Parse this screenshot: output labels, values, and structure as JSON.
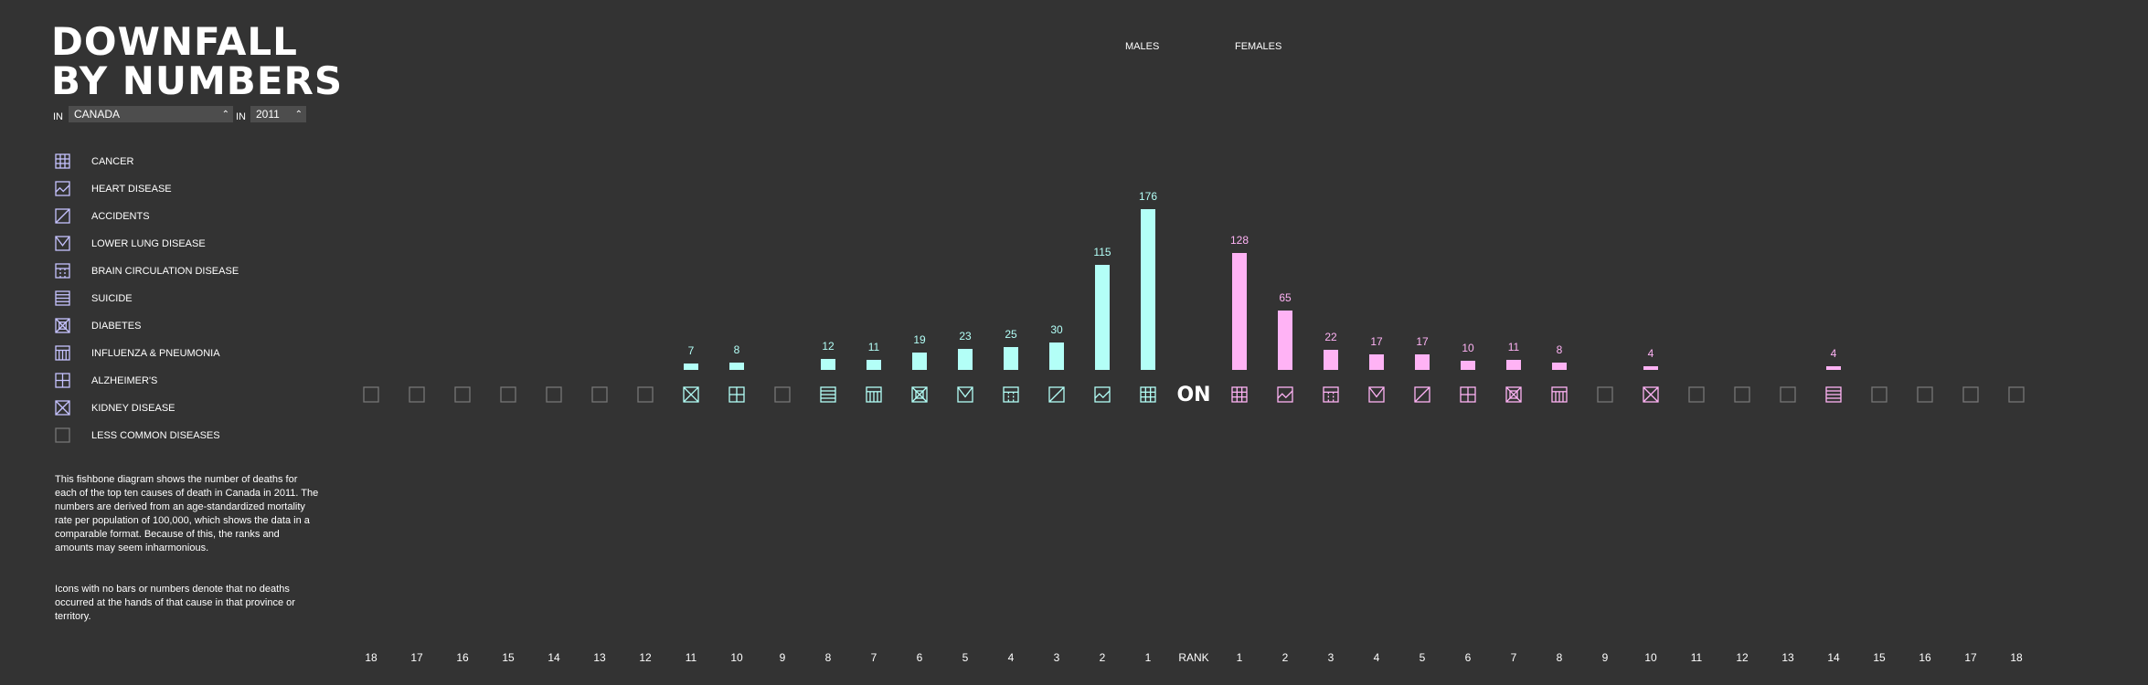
{
  "title_line1": "DOWNFALL",
  "title_line2": "BY NUMBERS",
  "filters": {
    "in_label_1": "IN",
    "region": "CANADA",
    "in_label_2": "IN",
    "year": "2011"
  },
  "legend": [
    {
      "label": "CANCER",
      "icon": "grid-icon"
    },
    {
      "label": "HEART DISEASE",
      "icon": "heart-line-icon"
    },
    {
      "label": "ACCIDENTS",
      "icon": "diagonal-icon"
    },
    {
      "label": "LOWER LUNG DISEASE",
      "icon": "ribbon-icon"
    },
    {
      "label": "BRAIN CIRCULATION DISEASE",
      "icon": "dashed-arch-icon"
    },
    {
      "label": "SUICIDE",
      "icon": "ladder-icon"
    },
    {
      "label": "DIABETES",
      "icon": "box-x-icon"
    },
    {
      "label": "INFLUENZA & PNEUMONIA",
      "icon": "comb-icon"
    },
    {
      "label": "ALZHEIMER'S",
      "icon": "quad-icon"
    },
    {
      "label": "KIDNEY DISEASE",
      "icon": "bowtie-icon"
    },
    {
      "label": "LESS COMMON DISEASES",
      "icon": "empty-square-icon"
    }
  ],
  "description": "This fishbone diagram shows the number of deaths for each of the top ten causes of death in Canada in 2011. The numbers are derived from an age-standardized mortality rate per population of 100,000, which shows the data in a comparable format. Because of this, the ranks and amounts may seem inharmonious.",
  "description2": "Icons with no bars or numbers denote that no deaths occurred at the hands of that cause in that province or territory.",
  "males_label": "MALES",
  "females_label": "FEMALES",
  "center_label": "ON",
  "rank_label": "RANK",
  "colors": {
    "male": "#b3fff7",
    "female": "#ffb3f5",
    "muted": "#777777",
    "legend": "#c6c3ff",
    "background": "#333333"
  },
  "chart_data": {
    "type": "bar",
    "males": [
      {
        "rank": 1,
        "cause": "CANCER",
        "value": 176
      },
      {
        "rank": 2,
        "cause": "HEART DISEASE",
        "value": 115
      },
      {
        "rank": 3,
        "cause": "ACCIDENTS",
        "value": 30
      },
      {
        "rank": 4,
        "cause": "BRAIN CIRCULATION DISEASE",
        "value": 25
      },
      {
        "rank": 5,
        "cause": "LOWER LUNG DISEASE",
        "value": 23
      },
      {
        "rank": 6,
        "cause": "DIABETES",
        "value": 19
      },
      {
        "rank": 7,
        "cause": "INFLUENZA & PNEUMONIA",
        "value": 11
      },
      {
        "rank": 8,
        "cause": "SUICIDE",
        "value": 12
      },
      {
        "rank": 9,
        "cause": "LESS COMMON DISEASES",
        "value": null
      },
      {
        "rank": 10,
        "cause": "ALZHEIMER'S",
        "value": 8
      },
      {
        "rank": 11,
        "cause": "KIDNEY DISEASE",
        "value": 7
      },
      {
        "rank": 12,
        "cause": "LESS COMMON DISEASES",
        "value": null
      },
      {
        "rank": 13,
        "cause": "LESS COMMON DISEASES",
        "value": null
      },
      {
        "rank": 14,
        "cause": "LESS COMMON DISEASES",
        "value": null
      },
      {
        "rank": 15,
        "cause": "LESS COMMON DISEASES",
        "value": null
      },
      {
        "rank": 16,
        "cause": "LESS COMMON DISEASES",
        "value": null
      },
      {
        "rank": 17,
        "cause": "LESS COMMON DISEASES",
        "value": null
      },
      {
        "rank": 18,
        "cause": "LESS COMMON DISEASES",
        "value": null
      }
    ],
    "females": [
      {
        "rank": 1,
        "cause": "CANCER",
        "value": 128
      },
      {
        "rank": 2,
        "cause": "HEART DISEASE",
        "value": 65
      },
      {
        "rank": 3,
        "cause": "BRAIN CIRCULATION DISEASE",
        "value": 22
      },
      {
        "rank": 4,
        "cause": "LOWER LUNG DISEASE",
        "value": 17
      },
      {
        "rank": 5,
        "cause": "ACCIDENTS",
        "value": 17
      },
      {
        "rank": 6,
        "cause": "ALZHEIMER'S",
        "value": 10
      },
      {
        "rank": 7,
        "cause": "DIABETES",
        "value": 11
      },
      {
        "rank": 8,
        "cause": "INFLUENZA & PNEUMONIA",
        "value": 8
      },
      {
        "rank": 9,
        "cause": "LESS COMMON DISEASES",
        "value": null
      },
      {
        "rank": 10,
        "cause": "KIDNEY DISEASE",
        "value": 4
      },
      {
        "rank": 11,
        "cause": "LESS COMMON DISEASES",
        "value": null
      },
      {
        "rank": 12,
        "cause": "LESS COMMON DISEASES",
        "value": null
      },
      {
        "rank": 13,
        "cause": "LESS COMMON DISEASES",
        "value": null
      },
      {
        "rank": 14,
        "cause": "SUICIDE",
        "value": 4
      },
      {
        "rank": 15,
        "cause": "LESS COMMON DISEASES",
        "value": null
      },
      {
        "rank": 16,
        "cause": "LESS COMMON DISEASES",
        "value": null
      },
      {
        "rank": 17,
        "cause": "LESS COMMON DISEASES",
        "value": null
      },
      {
        "rank": 18,
        "cause": "LESS COMMON DISEASES",
        "value": null
      }
    ],
    "grid": false
  }
}
